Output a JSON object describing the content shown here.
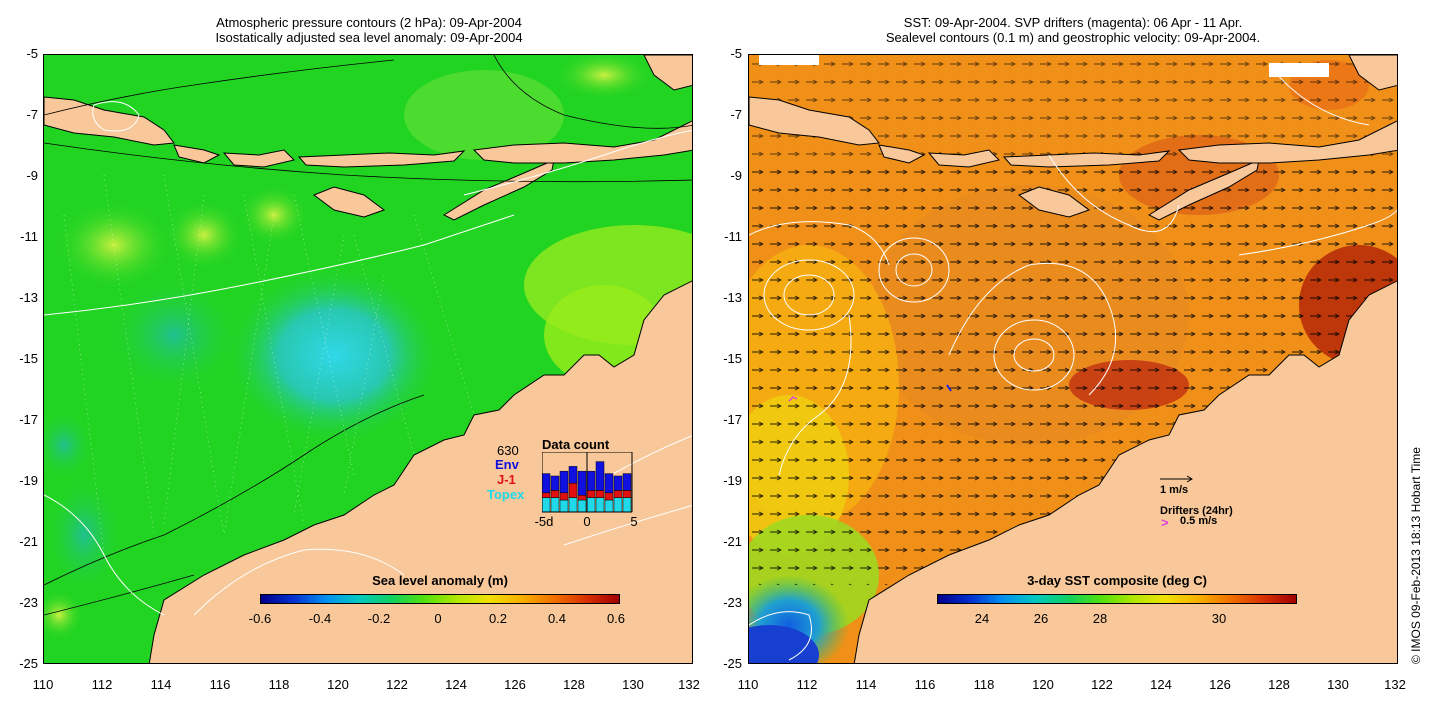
{
  "left_panel": {
    "title_line1": "Atmospheric pressure contours (2 hPa): 09-Apr-2004",
    "title_line2": "Isostatically adjusted sea level anomaly: 09-Apr-2004",
    "lat_labels": [
      "-5",
      "-7",
      "-9",
      "-11",
      "-13",
      "-15",
      "-17",
      "-19",
      "-21",
      "-23",
      "-25"
    ],
    "lon_labels": [
      "110",
      "112",
      "114",
      "116",
      "118",
      "120",
      "122",
      "124",
      "126",
      "128",
      "130",
      "132"
    ],
    "colorbar_title": "Sea level anomaly (m)",
    "colorbar_ticks": [
      "-0.6",
      "-0.4",
      "-0.2",
      "0",
      "0.2",
      "0.4",
      "0.6"
    ],
    "inset": {
      "count": "630",
      "env_label": "Env",
      "j1_label": "J-1",
      "topex_label": "Topex",
      "title": "Data count",
      "x_ticks": [
        "-5d",
        "0",
        "5"
      ],
      "env_color": "#1010e0",
      "j1_color": "#e01010",
      "topex_color": "#20d8e8",
      "bars": [
        {
          "topex": 6,
          "j1": 2,
          "env": 8
        },
        {
          "topex": 6,
          "j1": 3,
          "env": 6
        },
        {
          "topex": 5,
          "j1": 3,
          "env": 9
        },
        {
          "topex": 6,
          "j1": 6,
          "env": 7
        },
        {
          "topex": 5,
          "j1": 2,
          "env": 10
        },
        {
          "topex": 6,
          "j1": 3,
          "env": 8
        },
        {
          "topex": 6,
          "j1": 3,
          "env": 12
        },
        {
          "topex": 5,
          "j1": 3,
          "env": 8
        },
        {
          "topex": 6,
          "j1": 3,
          "env": 6
        },
        {
          "topex": 6,
          "j1": 3,
          "env": 7
        }
      ]
    }
  },
  "right_panel": {
    "title_line1": "SST: 09-Apr-2004. SVP drifters (magenta): 06 Apr - 11 Apr.",
    "title_line2": "Sealevel contours (0.1 m) and geostrophic velocity: 09-Apr-2004.",
    "lat_labels": [
      "-5",
      "-7",
      "-9",
      "-11",
      "-13",
      "-15",
      "-17",
      "-19",
      "-21",
      "-23",
      "-25"
    ],
    "lon_labels": [
      "110",
      "112",
      "114",
      "116",
      "118",
      "120",
      "122",
      "124",
      "126",
      "128",
      "130",
      "132"
    ],
    "colorbar_title": "3-day SST composite (deg C)",
    "colorbar_ticks": [
      "24",
      "26",
      "28",
      "30"
    ],
    "velocity_scale_label": "1 m/s",
    "drifters_label": "Drifters (24hr)",
    "drifter_scale_label": "0.5 m/s",
    "drifter_color": "#e040e0"
  },
  "copyright": "© IMOS 09-Feb-2013 18:13 Hobart Time",
  "colors": {
    "land": "#f8c89a",
    "sla_base": "#22d422",
    "sst_base": "#f09018"
  }
}
